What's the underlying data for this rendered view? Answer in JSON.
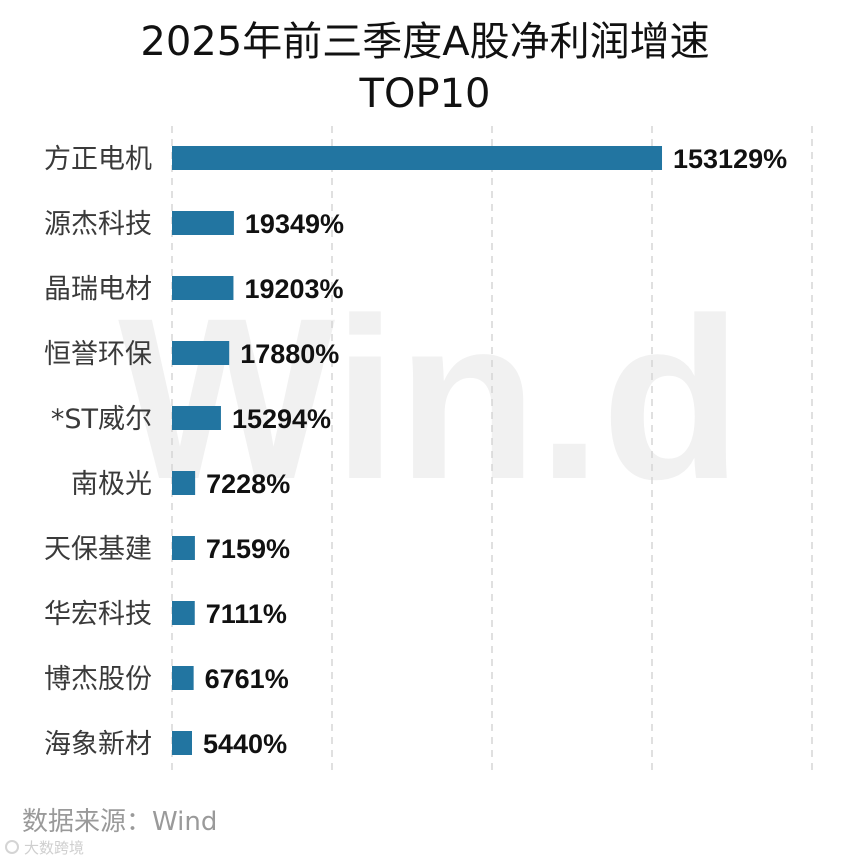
{
  "title": [
    "2025年前三季度A股净利润增速",
    "TOP10"
  ],
  "source": "数据来源：Wind",
  "watermark": "Win.d",
  "logo": "大数跨境",
  "colors": {
    "bar": "#2275a1",
    "grid": "#d6d6d6",
    "title": "#111111",
    "category": "#3a3a3a",
    "value": "#111111",
    "source": "#9a9a9a"
  },
  "chart_data": {
    "type": "bar",
    "orientation": "horizontal",
    "categories": [
      "方正电机",
      "源杰科技",
      "晶瑞电材",
      "恒誉环保",
      "*ST威尔",
      "南极光",
      "天保基建",
      "华宏科技",
      "博杰股份",
      "海象新材"
    ],
    "values": [
      153129,
      19349,
      19203,
      17880,
      15294,
      7228,
      7159,
      7111,
      6761,
      5440
    ],
    "data_labels": [
      "153129%",
      "19349%",
      "19203%",
      "17880%",
      "15294%",
      "7228%",
      "7159%",
      "7111%",
      "6761%",
      "5440%"
    ],
    "xlim": [
      0,
      200000
    ],
    "grid_values": [
      0,
      50000,
      100000,
      150000,
      200000
    ],
    "grid": true,
    "legend": "none",
    "xlabel": "",
    "ylabel": ""
  }
}
